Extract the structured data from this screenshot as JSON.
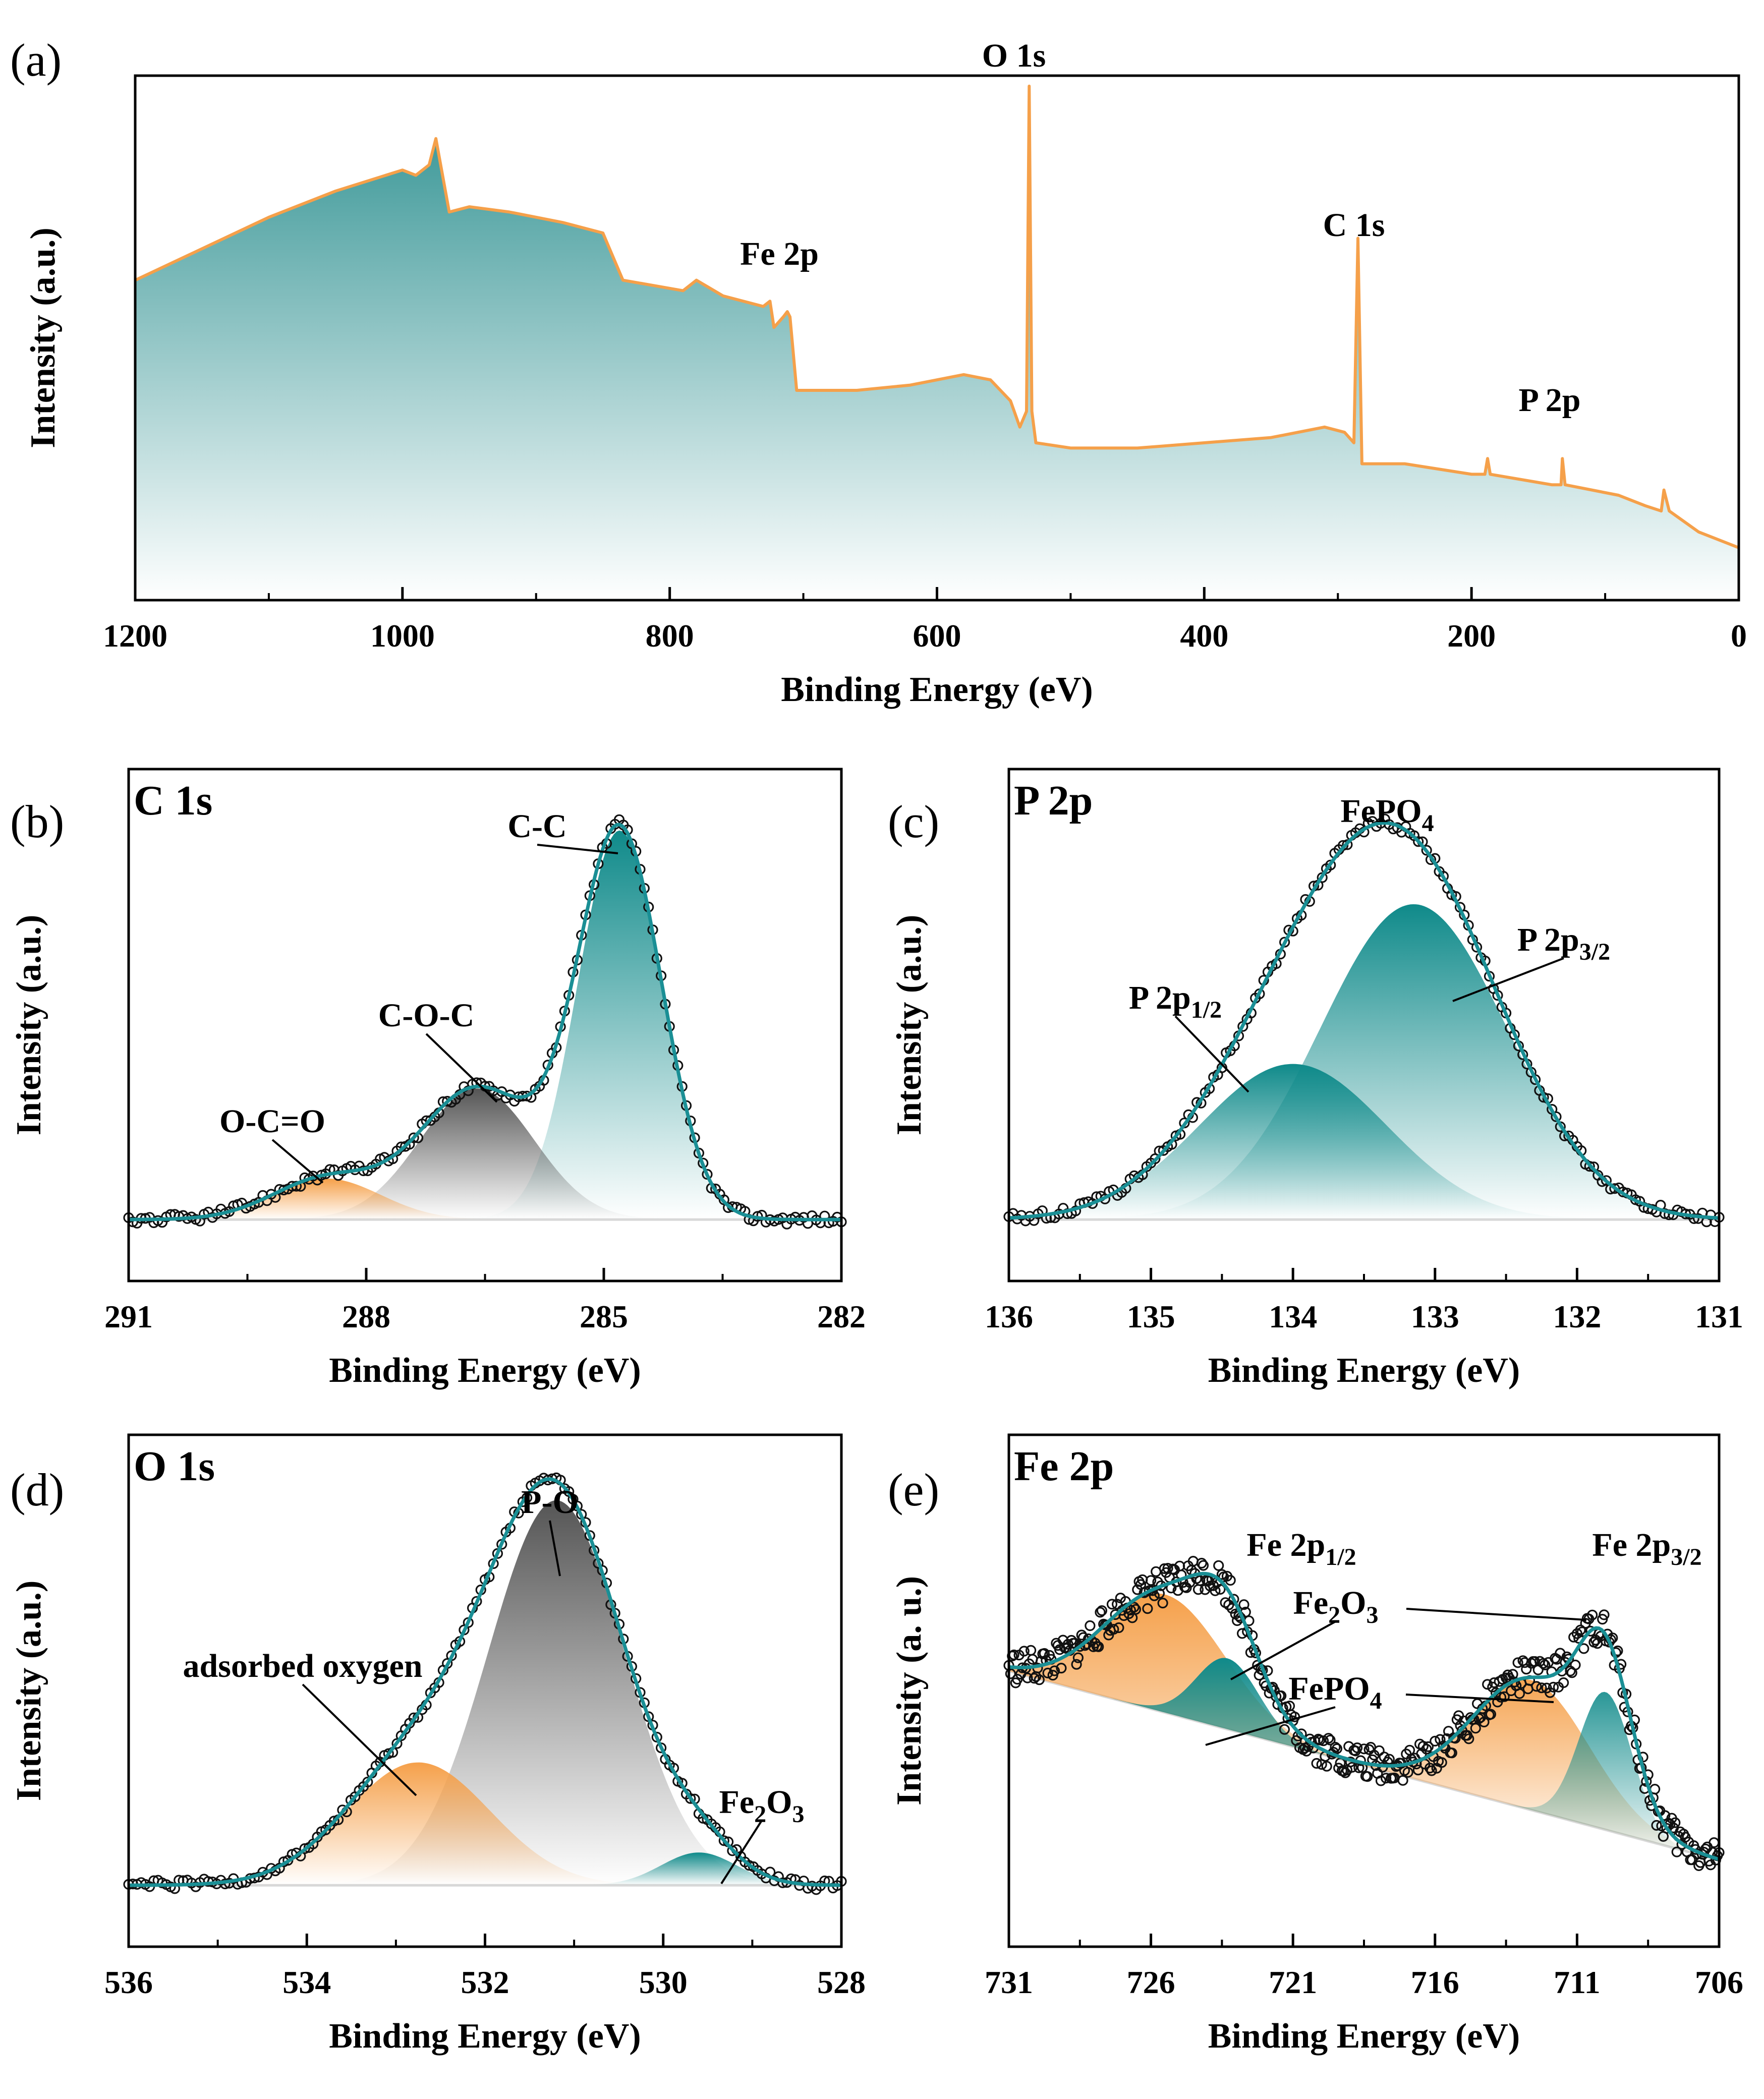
{
  "colors": {
    "teal": "#0f8a8a",
    "orange": "#f5a04a",
    "gray": "#555555",
    "line": "#f5a04a",
    "fit": "#1a8f95"
  },
  "chart_data": [
    {
      "id": "a",
      "panel_label": "(a)",
      "type": "line",
      "title": "",
      "xlabel": "Binding Energy (eV)",
      "ylabel": "Intensity (a.u.)",
      "xlim": [
        1200,
        0
      ],
      "ylim": [
        0,
        100
      ],
      "xticks": [
        1200,
        1000,
        800,
        600,
        400,
        200,
        0
      ],
      "series": [
        {
          "name": "survey",
          "points": [
            [
              1200,
              61
            ],
            [
              1150,
              67
            ],
            [
              1100,
              73
            ],
            [
              1050,
              78
            ],
            [
              1000,
              82
            ],
            [
              990,
              81
            ],
            [
              980,
              83
            ],
            [
              975,
              88
            ],
            [
              965,
              74
            ],
            [
              950,
              75
            ],
            [
              920,
              74
            ],
            [
              880,
              72
            ],
            [
              850,
              70
            ],
            [
              835,
              61
            ],
            [
              790,
              59
            ],
            [
              780,
              61
            ],
            [
              760,
              58
            ],
            [
              730,
              56
            ],
            [
              725,
              57
            ],
            [
              722,
              52
            ],
            [
              715,
              54
            ],
            [
              712,
              55
            ],
            [
              710,
              54
            ],
            [
              705,
              40
            ],
            [
              660,
              40
            ],
            [
              620,
              41
            ],
            [
              600,
              42
            ],
            [
              580,
              43
            ],
            [
              560,
              42
            ],
            [
              545,
              38
            ],
            [
              538,
              33
            ],
            [
              533,
              36
            ],
            [
              531,
              98
            ],
            [
              529,
              36
            ],
            [
              526,
              30
            ],
            [
              500,
              29
            ],
            [
              450,
              29
            ],
            [
              400,
              30
            ],
            [
              350,
              31
            ],
            [
              310,
              33
            ],
            [
              295,
              32
            ],
            [
              288,
              30
            ],
            [
              285,
              69
            ],
            [
              282,
              26
            ],
            [
              250,
              26
            ],
            [
              200,
              24
            ],
            [
              190,
              24
            ],
            [
              188,
              27
            ],
            [
              186,
              24
            ],
            [
              140,
              22
            ],
            [
              133,
              22
            ],
            [
              132,
              27
            ],
            [
              130,
              22
            ],
            [
              90,
              20
            ],
            [
              70,
              18
            ],
            [
              58,
              17
            ],
            [
              56,
              21
            ],
            [
              52,
              17
            ],
            [
              30,
              13
            ],
            [
              0,
              10
            ]
          ]
        }
      ],
      "annotations": [
        {
          "text": "O 1s",
          "x": 531
        },
        {
          "text": "Fe 2p",
          "x": 705
        },
        {
          "text": "C 1s",
          "x": 285
        },
        {
          "text": "P 2p",
          "x": 133
        }
      ]
    },
    {
      "id": "b",
      "panel_label": "(b)",
      "type": "line",
      "title": "C 1s",
      "xlabel": "Binding Energy (eV)",
      "ylabel": "Intensity (a.u.)",
      "xlim": [
        291,
        282
      ],
      "ylim": [
        -0.15,
        1.1
      ],
      "xticks": [
        291,
        288,
        285,
        282
      ],
      "baseline": 0.0,
      "components": [
        {
          "name": "C-C",
          "center": 284.8,
          "height": 0.95,
          "fwhm": 1.25,
          "color": "teal"
        },
        {
          "name": "C-O-C",
          "center": 286.6,
          "height": 0.32,
          "fwhm": 1.7,
          "color": "gray"
        },
        {
          "name": "O-C=O",
          "center": 288.5,
          "height": 0.1,
          "fwhm": 1.6,
          "color": "orange"
        }
      ],
      "annotations": [
        {
          "text": "C-C",
          "x": 284.8
        },
        {
          "text": "C-O-C",
          "x": 286.6
        },
        {
          "text": "O-C=O",
          "x": 288.5
        }
      ]
    },
    {
      "id": "c",
      "panel_label": "(c)",
      "type": "line",
      "title": "P 2p",
      "xlabel": "Binding Energy (eV)",
      "ylabel": "Intensity (a.u.)",
      "xlim": [
        136,
        131
      ],
      "ylim": [
        -0.15,
        1.1
      ],
      "xticks": [
        136,
        135,
        134,
        133,
        132,
        131
      ],
      "baseline": 0.0,
      "components": [
        {
          "name": "P 2p3/2",
          "center": 133.15,
          "height": 0.77,
          "fwhm": 1.55,
          "color": "teal"
        },
        {
          "name": "P 2p1/2",
          "center": 134.0,
          "height": 0.38,
          "fwhm": 1.55,
          "color": "teal"
        }
      ],
      "annotations": [
        {
          "text": "FePO",
          "sub": "4",
          "x": 133.3
        },
        {
          "text": "P 2p",
          "sub": "3/2",
          "x": 132.7
        },
        {
          "text": "P 2p",
          "sub": "1/2",
          "x": 134.6
        }
      ]
    },
    {
      "id": "d",
      "panel_label": "(d)",
      "type": "line",
      "title": "O 1s",
      "xlabel": "Binding Energy (eV)",
      "ylabel": "Intensity (a.u.)",
      "xlim": [
        536,
        528
      ],
      "ylim": [
        -0.15,
        1.1
      ],
      "xticks": [
        536,
        534,
        532,
        530,
        528
      ],
      "baseline": 0.0,
      "components": [
        {
          "name": "P-O",
          "center": 531.2,
          "height": 0.94,
          "fwhm": 1.8,
          "color": "gray"
        },
        {
          "name": "adsorbed oxygen",
          "center": 532.75,
          "height": 0.3,
          "fwhm": 1.9,
          "color": "orange"
        },
        {
          "name": "Fe2O3",
          "center": 529.6,
          "height": 0.08,
          "fwhm": 1.0,
          "color": "teal"
        }
      ],
      "annotations": [
        {
          "text": "P-O",
          "x": 531.2
        },
        {
          "text": "adsorbed oxygen",
          "x": 532.7
        },
        {
          "text": "Fe",
          "sub": "2",
          "text2": "O",
          "sub2": "3",
          "x": 529.6
        }
      ]
    },
    {
      "id": "e",
      "panel_label": "(e)",
      "type": "line",
      "title": "Fe 2p",
      "xlabel": "Binding Energy (eV)",
      "ylabel": "Intensity (a. u.)",
      "xlim": [
        731,
        706
      ],
      "ylim": [
        -0.2,
        1.1
      ],
      "xticks": [
        731,
        726,
        721,
        716,
        711,
        706
      ],
      "baseline_linear": [
        0.5,
        0.02
      ],
      "components": [
        {
          "name": "FePO4 2p1/2",
          "center": 725.5,
          "height": 0.3,
          "fwhm": 5.0,
          "color": "orange"
        },
        {
          "name": "Fe2O3 2p1/2",
          "center": 723.3,
          "height": 0.18,
          "fwhm": 2.6,
          "color": "teal"
        },
        {
          "name": "FePO4 2p3/2",
          "center": 712.6,
          "height": 0.33,
          "fwhm": 4.8,
          "color": "orange"
        },
        {
          "name": "Fe2O3 2p3/2",
          "center": 710.0,
          "height": 0.35,
          "fwhm": 2.2,
          "color": "teal"
        }
      ],
      "annotations": [
        {
          "text": "Fe 2p",
          "sub": "1/2",
          "x": 725
        },
        {
          "text": "Fe 2p",
          "sub": "3/2",
          "x": 711
        },
        {
          "text": "Fe",
          "sub": "2",
          "text2": "O",
          "sub2": "3",
          "x": 721
        },
        {
          "text": "FePO",
          "sub": "4",
          "x": 721
        }
      ]
    }
  ]
}
